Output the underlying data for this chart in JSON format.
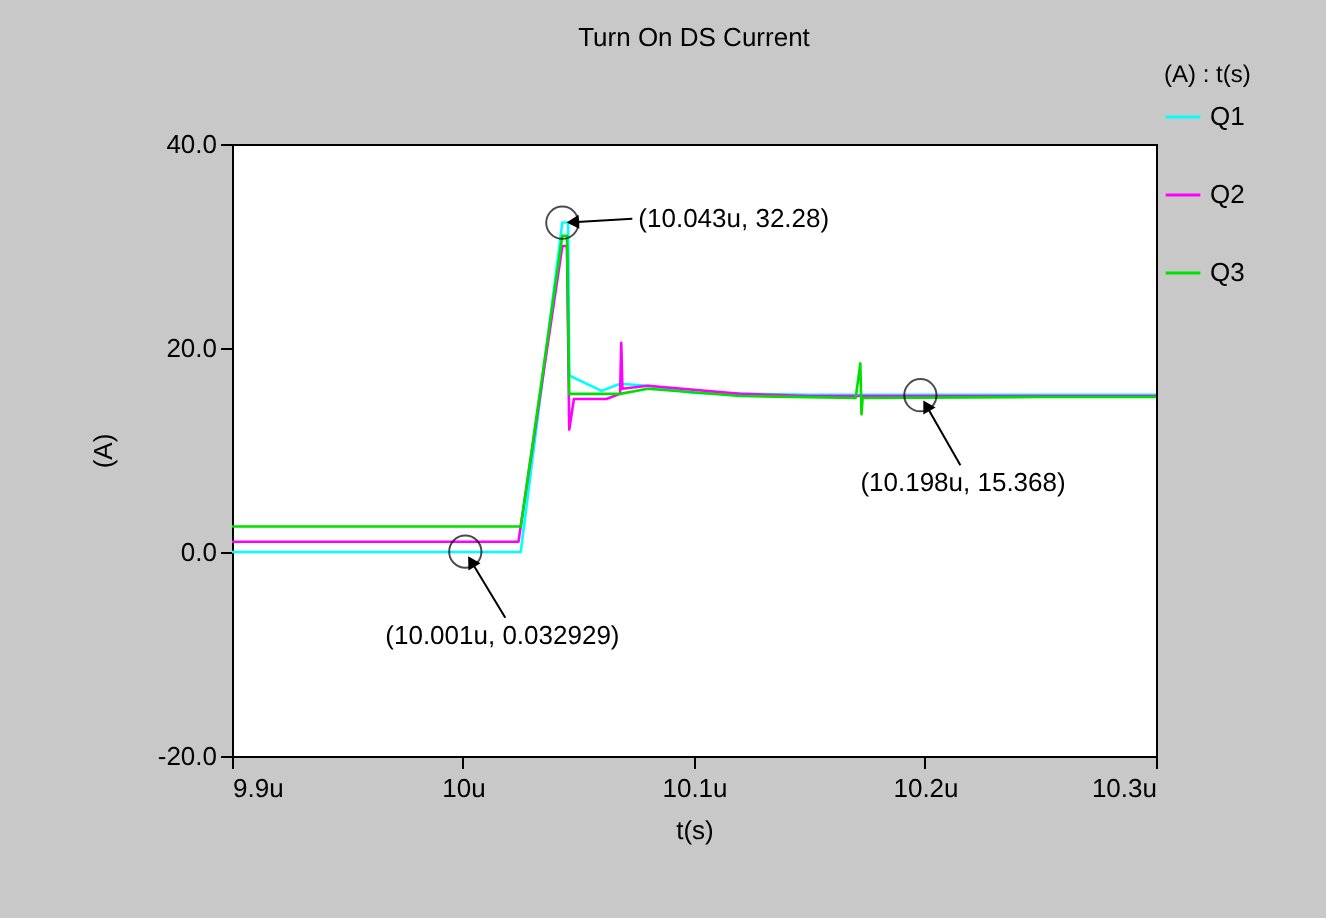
{
  "chart_data": {
    "type": "line",
    "title": "Turn On DS Current",
    "xlabel": "t(s)",
    "ylabel": "(A)",
    "legend_title": "(A) : t(s)",
    "xlim": [
      9.9,
      10.3
    ],
    "xticks": [
      {
        "value": 9.9,
        "label": "9.9u"
      },
      {
        "value": 10,
        "label": "10u"
      },
      {
        "value": 10.1,
        "label": "10.1u"
      },
      {
        "value": 10.2,
        "label": "10.2u"
      },
      {
        "value": 10.3,
        "label": "10.3u"
      }
    ],
    "ylim": [
      -20,
      40
    ],
    "yticks": [
      {
        "value": -20,
        "label": "-20.0"
      },
      {
        "value": 0,
        "label": "0.0"
      },
      {
        "value": 20,
        "label": "20.0"
      },
      {
        "value": 40,
        "label": "40.0"
      }
    ],
    "series": [
      {
        "name": "Q1",
        "color": "#00ffff",
        "x": [
          9.9,
          10.025,
          10.043,
          10.0455,
          10.046,
          10.06,
          10.068,
          10.08,
          10.1,
          10.15,
          10.3
        ],
        "values": [
          0,
          0,
          32.3,
          32.3,
          17.3,
          15.8,
          16.5,
          16.3,
          15.6,
          15.4,
          15.4
        ]
      },
      {
        "name": "Q2",
        "color": "#ff00ff",
        "x": [
          9.9,
          10.024,
          10.043,
          10.045,
          10.046,
          10.048,
          10.062,
          10.068,
          10.0685,
          10.069,
          10.08,
          10.12,
          10.15,
          10.3
        ],
        "values": [
          1,
          1,
          30,
          30,
          12,
          15,
          15,
          15.5,
          20.5,
          16,
          16.3,
          15.5,
          15.3,
          15.3
        ]
      },
      {
        "name": "Q3",
        "color": "#00e000",
        "x": [
          9.9,
          10.025,
          10.043,
          10.045,
          10.046,
          10.068,
          10.08,
          10.12,
          10.17,
          10.172,
          10.1725,
          10.173,
          10.25,
          10.3
        ],
        "values": [
          2.5,
          2.5,
          31,
          31,
          15.5,
          15.5,
          16,
          15.3,
          15.1,
          18.5,
          13.5,
          15.1,
          15.2,
          15.2
        ]
      }
    ],
    "annotations": [
      {
        "text": "(10.001u, 0.032929)",
        "x": 10.001,
        "y": 0.033
      },
      {
        "text": "(10.043u, 32.28)",
        "x": 10.043,
        "y": 32.28
      },
      {
        "text": "(10.198u, 15.368)",
        "x": 10.198,
        "y": 15.368
      }
    ],
    "grid": false,
    "legend": "right",
    "marker": "none",
    "line_style": "solid"
  }
}
